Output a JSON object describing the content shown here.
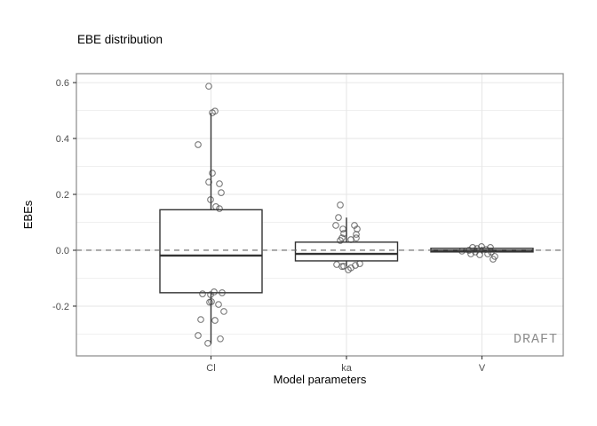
{
  "chart_data": {
    "type": "boxplot",
    "title": "EBE distribution",
    "xlabel": "Model parameters",
    "ylabel": "EBEs",
    "categories": [
      "Cl",
      "ka",
      "V"
    ],
    "ylim": [
      -0.378,
      0.632
    ],
    "yticks_major": [
      -0.2,
      0.0,
      0.2,
      0.4,
      0.6
    ],
    "ytick_labels": [
      "-0.2",
      "0.0",
      "0.2",
      "0.4",
      "0.6"
    ],
    "yticks_minor": [
      -0.3,
      -0.1,
      0.1,
      0.3,
      0.5
    ],
    "grid": {
      "show": true,
      "major_color": "#e6e6e6",
      "minor_color": "#f0f0f0"
    },
    "reference_line": {
      "y": 0.0,
      "style": "dashed",
      "color": "#666666"
    },
    "legend": "none",
    "watermark": "DRAFT",
    "style": {
      "box_stroke": "#333333",
      "box_fill": "#ffffff",
      "point_stroke": "#404040",
      "point_opacity": 0.7,
      "panel_border": "#888888",
      "tick_color": "#333333"
    },
    "series": [
      {
        "name": "Cl",
        "box": {
          "q1": -0.152,
          "median": -0.019,
          "q3": 0.145,
          "whisker_low": -0.335,
          "whisker_high": 0.492
        },
        "points": [
          [
            -2.5,
            0.587
          ],
          [
            4.5,
            0.498
          ],
          [
            1.5,
            0.492
          ],
          [
            -14.5,
            0.378
          ],
          [
            1.5,
            0.276
          ],
          [
            -2.5,
            0.244
          ],
          [
            9.5,
            0.238
          ],
          [
            11.5,
            0.206
          ],
          [
            -0.5,
            0.181
          ],
          [
            5.5,
            0.156
          ],
          [
            9.5,
            0.149
          ],
          [
            -9.5,
            -0.156
          ],
          [
            -0.5,
            -0.159
          ],
          [
            3.5,
            -0.149
          ],
          [
            12.5,
            -0.152
          ],
          [
            0.5,
            -0.184
          ],
          [
            -1.5,
            -0.186
          ],
          [
            8.5,
            -0.194
          ],
          [
            14.5,
            -0.219
          ],
          [
            -11.5,
            -0.248
          ],
          [
            4.5,
            -0.251
          ],
          [
            -14.5,
            -0.305
          ],
          [
            10.5,
            -0.317
          ],
          [
            -3.5,
            -0.333
          ]
        ]
      },
      {
        "name": "ka",
        "box": {
          "q1": -0.038,
          "median": -0.013,
          "q3": 0.029,
          "whisker_low": -0.057,
          "whisker_high": 0.117
        },
        "points": [
          [
            -7,
            0.162
          ],
          [
            -9,
            0.117
          ],
          [
            -12,
            0.089
          ],
          [
            9,
            0.089
          ],
          [
            -4,
            0.076
          ],
          [
            12,
            0.076
          ],
          [
            -3,
            0.06
          ],
          [
            11,
            0.057
          ],
          [
            -5,
            0.044
          ],
          [
            11,
            0.044
          ],
          [
            -7,
            0.035
          ],
          [
            5,
            0.038
          ],
          [
            -11,
            -0.051
          ],
          [
            -3,
            -0.057
          ],
          [
            -5,
            -0.058
          ],
          [
            5,
            -0.063
          ],
          [
            10,
            -0.054
          ],
          [
            15,
            -0.048
          ],
          [
            2,
            -0.07
          ]
        ]
      },
      {
        "name": "V",
        "box": {
          "q1": -0.006,
          "median": -0.001,
          "q3": 0.007,
          "whisker_low": -0.012,
          "whisker_high": 0.012
        },
        "points": [
          [
            -22.5,
            -0.003
          ],
          [
            -14.5,
            0.0
          ],
          [
            -10.5,
            0.01
          ],
          [
            -5.5,
            0.006
          ],
          [
            -0.5,
            0.013
          ],
          [
            4.5,
            0.003
          ],
          [
            9.5,
            0.01
          ],
          [
            -12.5,
            -0.013
          ],
          [
            -2.5,
            -0.016
          ],
          [
            10.5,
            -0.006
          ],
          [
            14.5,
            -0.022
          ],
          [
            12.5,
            -0.032
          ],
          [
            -7.5,
            -0.006
          ],
          [
            6.5,
            -0.013
          ]
        ]
      }
    ]
  }
}
